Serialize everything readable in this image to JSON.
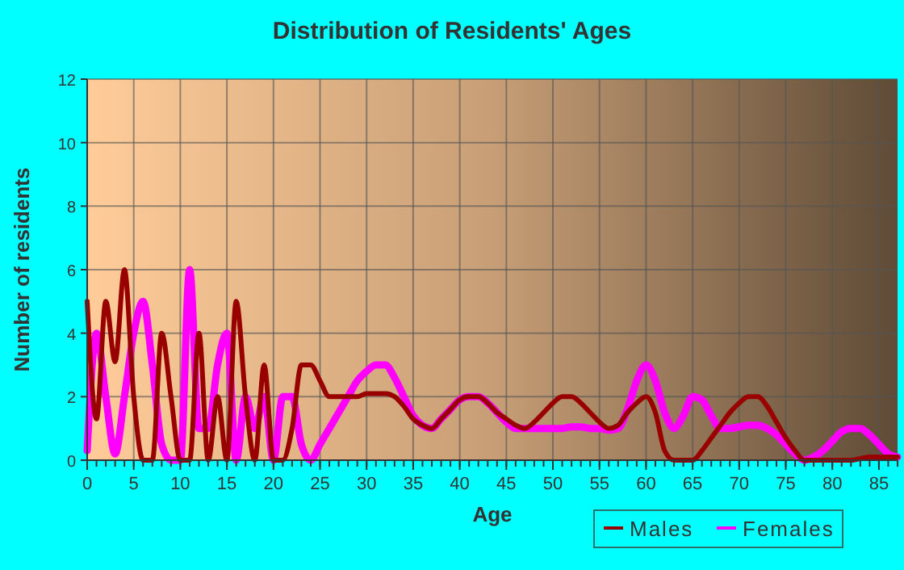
{
  "chart_data": {
    "type": "line",
    "title": "Distribution of Residents' Ages",
    "xlabel": "Age",
    "ylabel": "Number of residents",
    "x": [
      0,
      1,
      2,
      3,
      4,
      5,
      6,
      7,
      8,
      9,
      10,
      11,
      12,
      13,
      14,
      15,
      16,
      17,
      18,
      19,
      20,
      21,
      22,
      23,
      24,
      25,
      26,
      27,
      28,
      29,
      30,
      31,
      32,
      33,
      34,
      35,
      36,
      37,
      38,
      39,
      40,
      41,
      42,
      43,
      44,
      45,
      46,
      47,
      48,
      49,
      50,
      51,
      52,
      53,
      54,
      55,
      56,
      57,
      58,
      59,
      60,
      61,
      62,
      63,
      64,
      65,
      66,
      67,
      68,
      69,
      70,
      71,
      72,
      73,
      74,
      75,
      76,
      77,
      78,
      79,
      80,
      81,
      82,
      83,
      84,
      85,
      86,
      87
    ],
    "series": [
      {
        "name": "Males",
        "color": "#990000",
        "values": [
          5,
          1.3,
          5,
          3.1,
          6,
          2,
          0,
          0,
          4,
          2,
          0,
          0,
          4,
          0,
          2,
          0,
          5,
          2,
          0,
          3,
          0,
          0,
          1,
          3,
          3,
          2.5,
          2,
          2,
          2,
          2,
          2.1,
          2.1,
          2.1,
          2,
          1.7,
          1.3,
          1.1,
          1,
          1.3,
          1.6,
          1.9,
          2,
          2,
          1.8,
          1.5,
          1.3,
          1.1,
          1,
          1.2,
          1.5,
          1.8,
          2,
          2,
          1.8,
          1.5,
          1.2,
          1,
          1.1,
          1.5,
          1.8,
          2,
          1.5,
          0.3,
          0,
          0,
          0,
          0.3,
          0.7,
          1.1,
          1.5,
          1.8,
          2,
          2,
          1.7,
          1.2,
          0.7,
          0.3,
          0,
          0,
          0,
          0,
          0,
          0,
          0.05,
          0.1,
          0.1,
          0.1,
          0.1
        ]
      },
      {
        "name": "Females",
        "color": "#ff00ff",
        "values": [
          0.3,
          4,
          2,
          0.2,
          2,
          4,
          5,
          3,
          0.5,
          0,
          0,
          6,
          1,
          1,
          3,
          4,
          0,
          2,
          1,
          2,
          0,
          2,
          2,
          0.5,
          0,
          0.5,
          1,
          1.5,
          2,
          2.5,
          2.8,
          3,
          3,
          2.6,
          2,
          1.4,
          1.1,
          1,
          1.3,
          1.6,
          1.9,
          2,
          2,
          1.8,
          1.5,
          1.2,
          1,
          1,
          1,
          1,
          1,
          1,
          1.05,
          1.05,
          1,
          1,
          0.95,
          1,
          1.6,
          2.5,
          3,
          2.5,
          1.5,
          1,
          1.4,
          2,
          1.9,
          1.4,
          1,
          1,
          1.05,
          1.1,
          1.1,
          1,
          0.8,
          0.5,
          0.2,
          0,
          0.1,
          0.3,
          0.6,
          0.9,
          1,
          1,
          0.8,
          0.5,
          0.2,
          0.1
        ]
      }
    ],
    "xlim": [
      0,
      87
    ],
    "xticks": [
      0,
      5,
      10,
      15,
      20,
      25,
      30,
      35,
      40,
      45,
      50,
      55,
      60,
      65,
      70,
      75,
      80,
      85
    ],
    "ylim": [
      0,
      12
    ],
    "yticks": [
      0,
      2,
      4,
      6,
      8,
      10,
      12
    ],
    "grid": true,
    "legend": "bottom",
    "marker": "none",
    "line_style": "solid"
  }
}
